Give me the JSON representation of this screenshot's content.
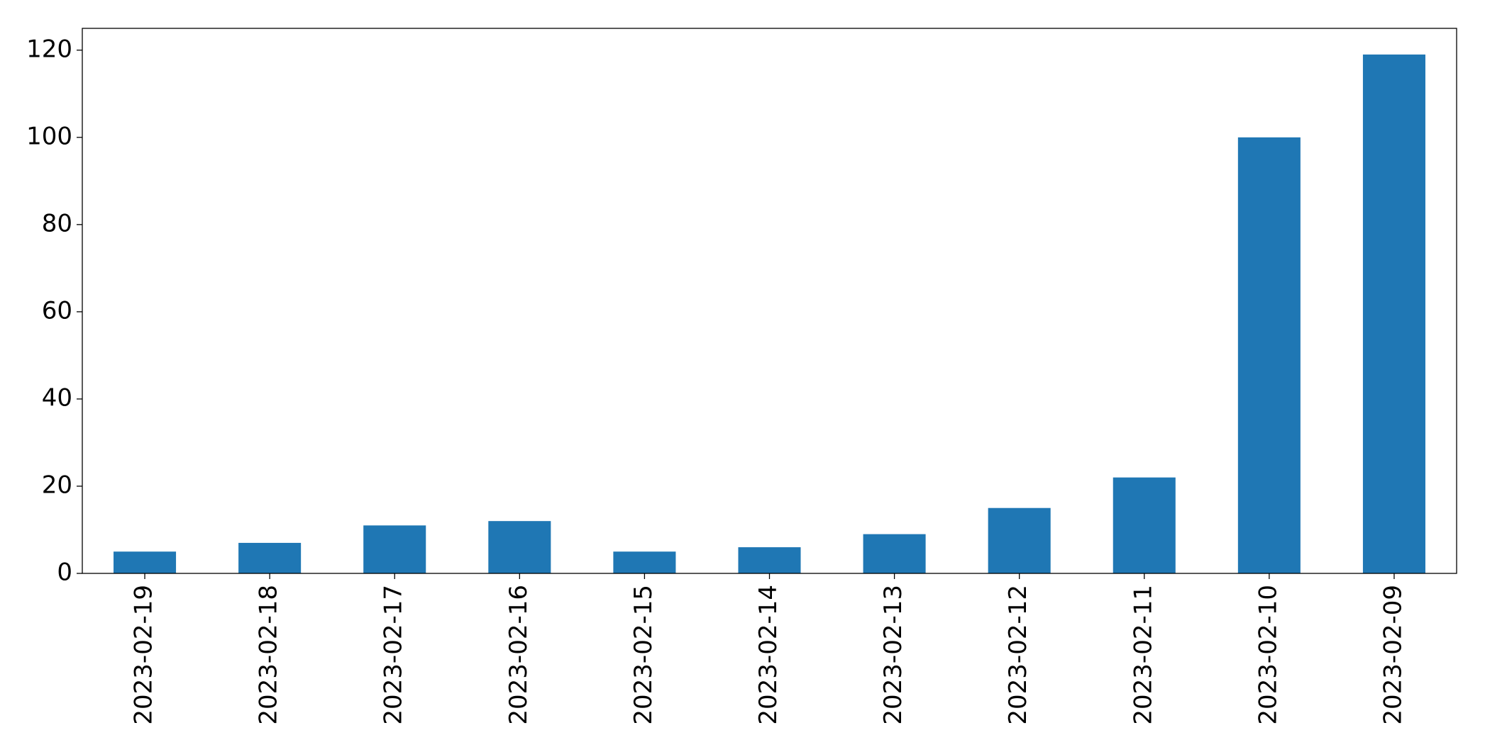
{
  "chart_data": {
    "type": "bar",
    "categories": [
      "2023-02-19",
      "2023-02-18",
      "2023-02-17",
      "2023-02-16",
      "2023-02-15",
      "2023-02-14",
      "2023-02-13",
      "2023-02-12",
      "2023-02-11",
      "2023-02-10",
      "2023-02-09"
    ],
    "values": [
      5,
      7,
      11,
      12,
      5,
      6,
      9,
      15,
      22,
      100,
      119
    ],
    "color": "#1f77b4",
    "ylim": [
      0,
      125
    ],
    "yticks": [
      0,
      20,
      40,
      60,
      80,
      100,
      120
    ],
    "grid": false
  }
}
